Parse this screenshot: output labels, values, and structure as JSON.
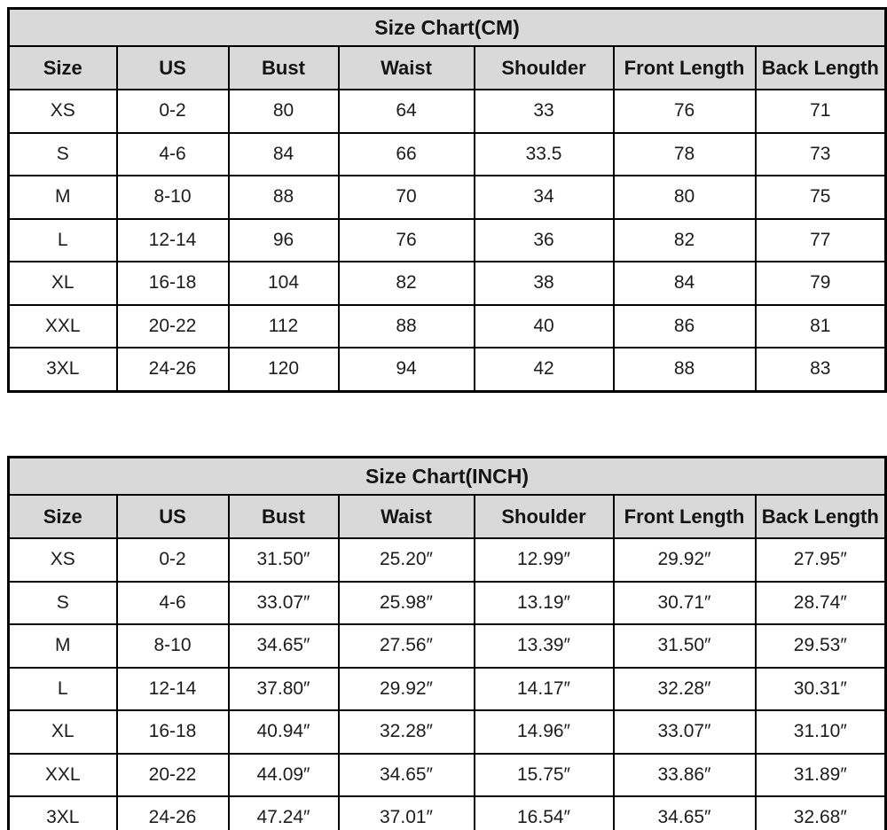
{
  "colors": {
    "header_background": "#d9d9d9",
    "cell_background": "#ffffff",
    "border": "#000000",
    "text": "#1c1c1c"
  },
  "tables": [
    {
      "id": "cm",
      "title": "Size Chart(CM)",
      "headers": [
        "Size",
        "US",
        "Bust",
        "Waist",
        "Shoulder",
        "Front Length",
        "Back Length"
      ],
      "rows": [
        [
          "XS",
          "0-2",
          "80",
          "64",
          "33",
          "76",
          "71"
        ],
        [
          "S",
          "4-6",
          "84",
          "66",
          "33.5",
          "78",
          "73"
        ],
        [
          "M",
          "8-10",
          "88",
          "70",
          "34",
          "80",
          "75"
        ],
        [
          "L",
          "12-14",
          "96",
          "76",
          "36",
          "82",
          "77"
        ],
        [
          "XL",
          "16-18",
          "104",
          "82",
          "38",
          "84",
          "79"
        ],
        [
          "XXL",
          "20-22",
          "112",
          "88",
          "40",
          "86",
          "81"
        ],
        [
          "3XL",
          "24-26",
          "120",
          "94",
          "42",
          "88",
          "83"
        ]
      ]
    },
    {
      "id": "inch",
      "title": "Size Chart(INCH)",
      "headers": [
        "Size",
        "US",
        "Bust",
        "Waist",
        "Shoulder",
        "Front Length",
        "Back Length"
      ],
      "rows": [
        [
          "XS",
          "0-2",
          "31.50″",
          "25.20″",
          "12.99″",
          "29.92″",
          "27.95″"
        ],
        [
          "S",
          "4-6",
          "33.07″",
          "25.98″",
          "13.19″",
          "30.71″",
          "28.74″"
        ],
        [
          "M",
          "8-10",
          "34.65″",
          "27.56″",
          "13.39″",
          "31.50″",
          "29.53″"
        ],
        [
          "L",
          "12-14",
          "37.80″",
          "29.92″",
          "14.17″",
          "32.28″",
          "30.31″"
        ],
        [
          "XL",
          "16-18",
          "40.94″",
          "32.28″",
          "14.96″",
          "33.07″",
          "31.10″"
        ],
        [
          "XXL",
          "20-22",
          "44.09″",
          "34.65″",
          "15.75″",
          "33.86″",
          "31.89″"
        ],
        [
          "3XL",
          "24-26",
          "47.24″",
          "37.01″",
          "16.54″",
          "34.65″",
          "32.68″"
        ]
      ]
    }
  ]
}
